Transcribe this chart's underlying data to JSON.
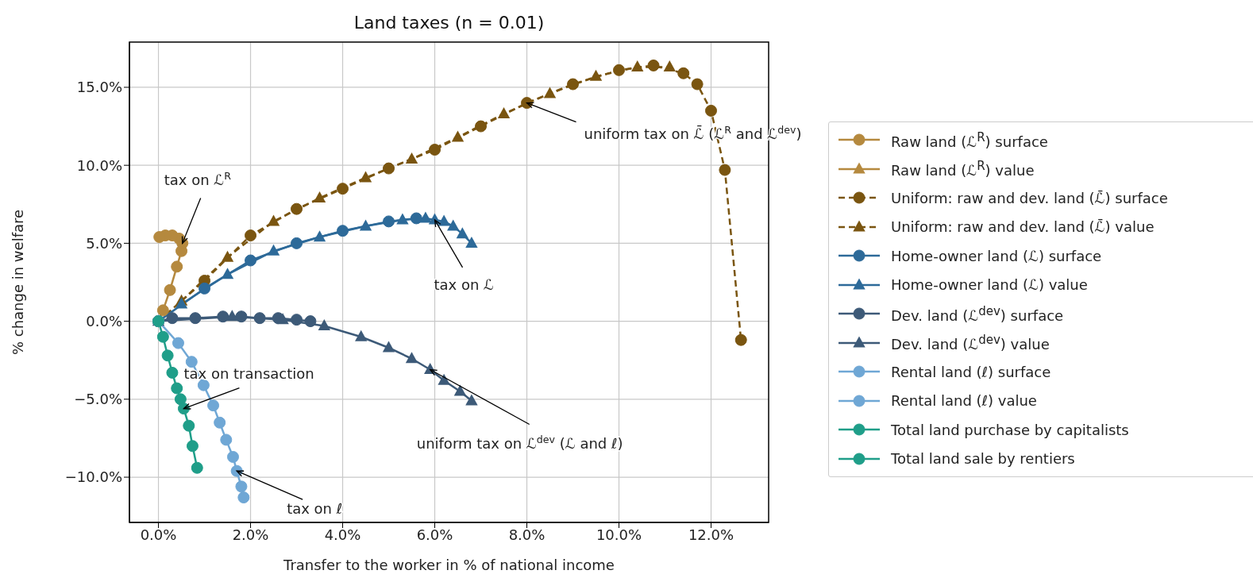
{
  "chart_data": {
    "type": "line",
    "title": "Land taxes (n = 0.01)",
    "xlabel": "Transfer to the worker in % of national income",
    "ylabel": "% change in welfare",
    "xlim": [
      -0.63,
      13.25
    ],
    "ylim": [
      -12.9,
      17.9
    ],
    "xticks": [
      {
        "value": 0,
        "label": "0.0%"
      },
      {
        "value": 2,
        "label": "2.0%"
      },
      {
        "value": 4,
        "label": "4.0%"
      },
      {
        "value": 6,
        "label": "6.0%"
      },
      {
        "value": 8,
        "label": "8.0%"
      },
      {
        "value": 10,
        "label": "10.0%"
      },
      {
        "value": 12,
        "label": "12.0%"
      }
    ],
    "yticks": [
      {
        "value": -10,
        "label": "−10.0%"
      },
      {
        "value": -5,
        "label": "−5.0%"
      },
      {
        "value": 0,
        "label": "0.0%"
      },
      {
        "value": 5,
        "label": "5.0%"
      },
      {
        "value": 10,
        "label": "10.0%"
      },
      {
        "value": 15,
        "label": "15.0%"
      }
    ],
    "grid": true,
    "legend": "right",
    "series": [
      {
        "name": "Raw land (ℒ$^{R}$) surface",
        "color": "#b5893e",
        "marker": "circle",
        "line_style": "solid",
        "x": [
          0,
          0.1,
          0.25,
          0.4,
          0.5,
          0.52,
          0.45,
          0.3,
          0.15,
          0.02
        ],
        "values": [
          0,
          0.7,
          2,
          3.5,
          4.5,
          5.0,
          5.3,
          5.5,
          5.5,
          5.4
        ]
      },
      {
        "name": "Raw land (ℒ$^{R}$) value",
        "color": "#b5893e",
        "marker": "triangle",
        "line_style": "solid"
      },
      {
        "name": "Uniform: raw and dev. land (ℒ̄) surface",
        "color": "#7a5510",
        "marker": "circle",
        "line_style": "dashed",
        "x": [
          0,
          1,
          2,
          3,
          4,
          5,
          6,
          7,
          8,
          9,
          10,
          10.75,
          11.4,
          11.7,
          12,
          12.3,
          12.65
        ],
        "values": [
          0,
          2.6,
          5.5,
          7.2,
          8.5,
          9.8,
          11,
          12.5,
          14,
          15.2,
          16.1,
          16.4,
          15.9,
          15.2,
          13.5,
          9.7,
          -1.2
        ]
      },
      {
        "name": "Uniform: raw and dev. land (ℒ̄) value",
        "color": "#7a5510",
        "marker": "triangle",
        "line_style": "dashed",
        "x": [
          0.5,
          1.5,
          2.5,
          3.5,
          4.5,
          5.5,
          6.5,
          7.5,
          8.5,
          9.5,
          10.4,
          11.1
        ],
        "values": [
          1.3,
          4.1,
          6.4,
          7.9,
          9.2,
          10.4,
          11.8,
          13.3,
          14.6,
          15.7,
          16.3,
          16.3
        ]
      },
      {
        "name": "Home-owner land (ℒ) surface",
        "color": "#2d6a99",
        "marker": "circle",
        "line_style": "solid",
        "x": [
          0,
          1,
          2,
          3,
          4,
          5,
          5.6
        ],
        "values": [
          0,
          2.1,
          3.9,
          5.0,
          5.8,
          6.4,
          6.6
        ]
      },
      {
        "name": "Home-owner land (ℒ) value",
        "color": "#2d6a99",
        "marker": "triangle",
        "line_style": "solid",
        "x": [
          0.5,
          1.5,
          2.5,
          3.5,
          4.5,
          5.3,
          5.8,
          6,
          6.2,
          6.4,
          6.6,
          6.8
        ],
        "values": [
          1.1,
          3.0,
          4.5,
          5.4,
          6.1,
          6.5,
          6.6,
          6.5,
          6.4,
          6.1,
          5.6,
          5.0
        ]
      },
      {
        "name": "Dev. land (ℒ$^{dev}$) surface",
        "color": "#3d5a78",
        "marker": "circle",
        "line_style": "solid",
        "x": [
          0,
          0.3,
          0.8,
          1.4,
          1.8,
          2.2,
          2.6,
          3.0,
          3.3
        ],
        "values": [
          0,
          0.2,
          0.2,
          0.3,
          0.3,
          0.2,
          0.2,
          0.1,
          0
        ]
      },
      {
        "name": "Dev. land (ℒ$^{dev}$) value",
        "color": "#3d5a78",
        "marker": "triangle",
        "line_style": "solid",
        "x": [
          0,
          1.6,
          2.7,
          3.6,
          4.4,
          5,
          5.5,
          5.9,
          6.2,
          6.55,
          6.8
        ],
        "values": [
          0,
          0.3,
          0.1,
          -0.3,
          -1.0,
          -1.7,
          -2.4,
          -3.1,
          -3.8,
          -4.5,
          -5.1
        ]
      },
      {
        "name": "Rental land (ℓ) surface",
        "color": "#6fa7d5",
        "marker": "circle",
        "line_style": "solid",
        "x": [
          0,
          0.43,
          0.72,
          0.98,
          1.19,
          1.33,
          1.47,
          1.62,
          1.7,
          1.8,
          1.85
        ],
        "values": [
          0,
          -1.4,
          -2.6,
          -4.1,
          -5.4,
          -6.5,
          -7.6,
          -8.7,
          -9.6,
          -10.6,
          -11.3
        ]
      },
      {
        "name": "Rental land (ℓ) value",
        "color": "#6fa7d5",
        "marker": "circle",
        "line_style": "solid"
      },
      {
        "name": "Total land purchase by capitalists",
        "color": "#1f9e89",
        "marker": "circle",
        "line_style": "solid",
        "x": [
          0,
          0.1,
          0.2,
          0.3,
          0.4,
          0.48,
          0.55,
          0.66,
          0.74,
          0.84
        ],
        "values": [
          0,
          -1,
          -2.2,
          -3.3,
          -4.3,
          -5.0,
          -5.6,
          -6.7,
          -8.0,
          -9.4
        ]
      },
      {
        "name": "Total land sale by rentiers",
        "color": "#1f9e89",
        "marker": "circle",
        "line_style": "solid"
      }
    ],
    "annotations": [
      {
        "text": "tax on ℒ$^{R}$",
        "x": 0.52,
        "y": 5.0
      },
      {
        "text": "uniform tax on ℒ̄ (ℒ$^{R}$ and ℒ$^{dev}$)",
        "x": 8,
        "y": 14
      },
      {
        "text": "tax on ℒ",
        "x": 6.0,
        "y": 6.5
      },
      {
        "text": "uniform tax on ℒ$^{dev}$ (ℒ and ℓ)",
        "x": 5.9,
        "y": -3.1
      },
      {
        "text": "tax on transaction",
        "x": 0.55,
        "y": -5.6
      },
      {
        "text": "tax on ℓ",
        "x": 1.7,
        "y": -9.6
      }
    ]
  }
}
